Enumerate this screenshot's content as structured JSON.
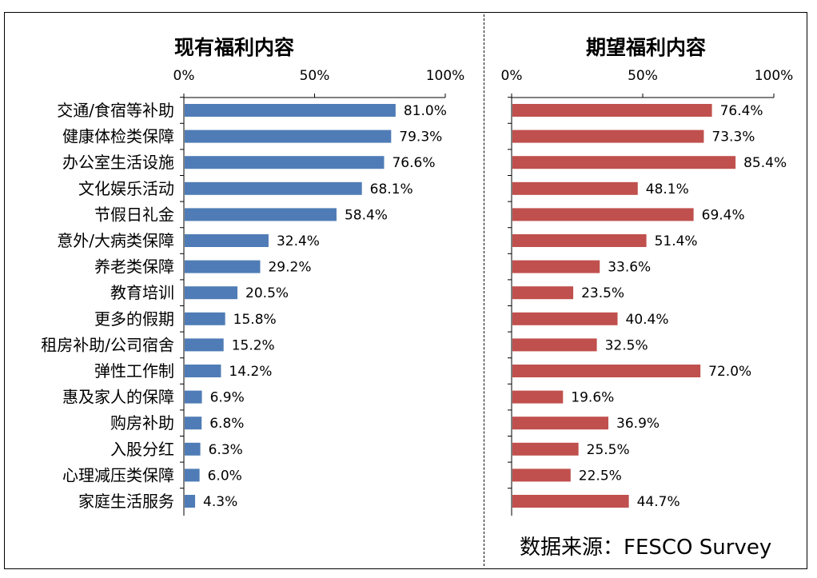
{
  "source_note": "数据来源：FESCO Survey",
  "chart_data": [
    {
      "type": "bar",
      "orientation": "horizontal",
      "title": "现有福利内容",
      "color": "#4F7CB6",
      "xlim": [
        0,
        100
      ],
      "ticks": [
        "0%",
        "50%",
        "100%"
      ],
      "tick_values": [
        0,
        50,
        100
      ],
      "axis_position": "top",
      "categories": [
        "交通/食宿等补助",
        "健康体检类保障",
        "办公室生活设施",
        "文化娱乐活动",
        "节假日礼金",
        "意外/大病类保障",
        "养老类保障",
        "教育培训",
        "更多的假期",
        "租房补助/公司宿舍",
        "弹性工作制",
        "惠及家人的保障",
        "购房补助",
        "入股分红",
        "心理减压类保障",
        "家庭生活服务"
      ],
      "values": [
        81.0,
        79.3,
        76.6,
        68.1,
        58.4,
        32.4,
        29.2,
        20.5,
        15.8,
        15.2,
        14.2,
        6.9,
        6.8,
        6.3,
        6.0,
        4.3
      ],
      "value_labels": [
        "81.0%",
        "79.3%",
        "76.6%",
        "68.1%",
        "58.4%",
        "32.4%",
        "29.2%",
        "20.5%",
        "15.8%",
        "15.2%",
        "14.2%",
        "6.9%",
        "6.8%",
        "6.3%",
        "6.0%",
        "4.3%"
      ]
    },
    {
      "type": "bar",
      "orientation": "horizontal",
      "title": "期望福利内容",
      "color": "#C0504D",
      "xlim": [
        0,
        100
      ],
      "ticks": [
        "0%",
        "50%",
        "100%"
      ],
      "tick_values": [
        0,
        50,
        100
      ],
      "axis_position": "top",
      "categories": [
        "交通/食宿等补助",
        "健康体检类保障",
        "办公室生活设施",
        "文化娱乐活动",
        "节假日礼金",
        "意外/大病类保障",
        "养老类保障",
        "教育培训",
        "更多的假期",
        "租房补助/公司宿舍",
        "弹性工作制",
        "惠及家人的保障",
        "购房补助",
        "入股分红",
        "心理减压类保障",
        "家庭生活服务"
      ],
      "values": [
        76.4,
        73.3,
        85.4,
        48.1,
        69.4,
        51.4,
        33.6,
        23.5,
        40.4,
        32.5,
        72.0,
        19.6,
        36.9,
        25.5,
        22.5,
        44.7
      ],
      "value_labels": [
        "76.4%",
        "73.3%",
        "85.4%",
        "48.1%",
        "69.4%",
        "51.4%",
        "33.6%",
        "23.5%",
        "40.4%",
        "32.5%",
        "72.0%",
        "19.6%",
        "36.9%",
        "25.5%",
        "22.5%",
        "44.7%"
      ]
    }
  ]
}
